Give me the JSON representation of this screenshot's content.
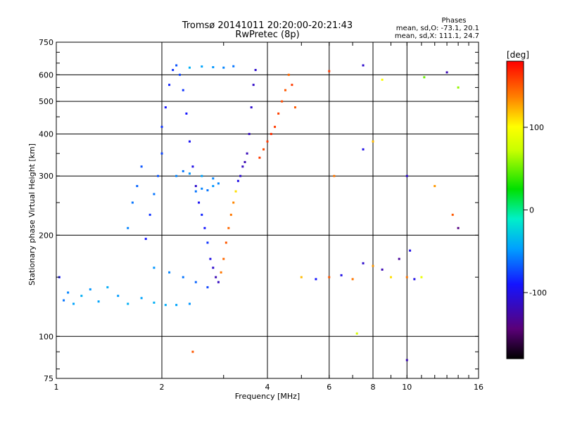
{
  "chart_data": {
    "type": "scatter",
    "title": "Tromsø 20141011 20:20:00-20:21:43",
    "subtitle": "RwPretec (8p)",
    "stats": {
      "heading": "Phases",
      "line1": "mean, sd,O: -73.1, 20.1",
      "line2": "mean, sd,X: 111.1, 24.7"
    },
    "xlabel": "Frequency [MHz]",
    "ylabel": "Stationary phase Virtual Height [km]",
    "x_scale": "log",
    "y_scale": "log",
    "xlim": [
      1,
      16
    ],
    "ylim": [
      75,
      750
    ],
    "x_ticks": [
      1,
      2,
      4,
      6,
      8,
      10,
      16
    ],
    "x_tick_labels": [
      "1",
      "2",
      "4",
      "6",
      "8",
      "10",
      "16"
    ],
    "y_ticks": [
      75,
      100,
      200,
      300,
      400,
      500,
      600,
      750
    ],
    "y_tick_labels": [
      "75",
      "100",
      "200",
      "300",
      "400",
      "500",
      "600",
      "750"
    ],
    "grid": true,
    "colorbar": {
      "label": "[deg]",
      "range": [
        -180,
        180
      ],
      "ticks": [
        -100,
        0,
        100
      ],
      "tick_labels": [
        "-100",
        "0",
        "100"
      ]
    },
    "series": [
      {
        "points": [
          [
            1.02,
            150,
            -90
          ],
          [
            1.05,
            128,
            -60
          ],
          [
            1.08,
            135,
            -55
          ],
          [
            1.12,
            125,
            -45
          ],
          [
            1.18,
            132,
            -40
          ],
          [
            1.25,
            138,
            -50
          ],
          [
            1.32,
            127,
            -45
          ],
          [
            1.4,
            140,
            -42
          ],
          [
            1.5,
            132,
            -48
          ],
          [
            1.6,
            125,
            -40
          ],
          [
            1.75,
            130,
            -45
          ],
          [
            1.9,
            126,
            -40
          ],
          [
            2.05,
            124,
            -42
          ],
          [
            2.2,
            124,
            -45
          ],
          [
            2.4,
            125,
            -50
          ],
          [
            1.6,
            210,
            -55
          ],
          [
            1.65,
            250,
            -60
          ],
          [
            1.7,
            280,
            -65
          ],
          [
            1.75,
            320,
            -70
          ],
          [
            1.8,
            195,
            -90
          ],
          [
            1.85,
            230,
            -80
          ],
          [
            1.9,
            265,
            -60
          ],
          [
            1.95,
            300,
            -70
          ],
          [
            2.0,
            350,
            -75
          ],
          [
            2.0,
            420,
            -80
          ],
          [
            2.05,
            480,
            -90
          ],
          [
            2.1,
            560,
            -85
          ],
          [
            2.15,
            620,
            -80
          ],
          [
            2.2,
            640,
            -70
          ],
          [
            2.25,
            600,
            -75
          ],
          [
            2.3,
            540,
            -80
          ],
          [
            2.35,
            460,
            -90
          ],
          [
            2.4,
            380,
            -95
          ],
          [
            2.45,
            320,
            -100
          ],
          [
            2.5,
            280,
            -110
          ],
          [
            2.55,
            250,
            -95
          ],
          [
            2.6,
            230,
            -85
          ],
          [
            2.65,
            210,
            -90
          ],
          [
            2.7,
            190,
            -80
          ],
          [
            2.75,
            170,
            -100
          ],
          [
            2.8,
            160,
            -110
          ],
          [
            2.85,
            150,
            -120
          ],
          [
            2.9,
            145,
            -115
          ],
          [
            2.95,
            155,
            140
          ],
          [
            3.0,
            170,
            145
          ],
          [
            3.05,
            190,
            150
          ],
          [
            3.1,
            210,
            145
          ],
          [
            3.15,
            230,
            140
          ],
          [
            3.2,
            250,
            135
          ],
          [
            3.25,
            270,
            110
          ],
          [
            3.3,
            290,
            -100
          ],
          [
            3.35,
            300,
            -110
          ],
          [
            3.4,
            320,
            -115
          ],
          [
            3.45,
            330,
            -120
          ],
          [
            3.5,
            350,
            -118
          ],
          [
            3.55,
            400,
            -115
          ],
          [
            3.6,
            480,
            -110
          ],
          [
            3.65,
            560,
            -112
          ],
          [
            3.7,
            620,
            -110
          ],
          [
            3.8,
            340,
            160
          ],
          [
            3.9,
            360,
            155
          ],
          [
            4.0,
            380,
            160
          ],
          [
            4.1,
            400,
            165
          ],
          [
            4.2,
            420,
            160
          ],
          [
            4.3,
            460,
            158
          ],
          [
            4.4,
            500,
            155
          ],
          [
            4.5,
            540,
            150
          ],
          [
            4.6,
            600,
            145
          ],
          [
            4.7,
            560,
            160
          ],
          [
            4.8,
            480,
            150
          ],
          [
            2.5,
            270,
            -60
          ],
          [
            2.6,
            275,
            -55
          ],
          [
            2.7,
            272,
            -60
          ],
          [
            2.8,
            280,
            -50
          ],
          [
            2.9,
            285,
            -55
          ],
          [
            1.9,
            160,
            -50
          ],
          [
            2.1,
            155,
            -55
          ],
          [
            2.3,
            150,
            -60
          ],
          [
            2.5,
            145,
            -65
          ],
          [
            2.7,
            140,
            -75
          ],
          [
            2.2,
            300,
            -55
          ],
          [
            2.3,
            310,
            -60
          ],
          [
            2.4,
            305,
            -50
          ],
          [
            2.6,
            300,
            -45
          ],
          [
            2.8,
            295,
            -55
          ],
          [
            2.4,
            630,
            -40
          ],
          [
            2.6,
            635,
            -45
          ],
          [
            2.8,
            632,
            -50
          ],
          [
            3.0,
            630,
            -55
          ],
          [
            3.2,
            636,
            -60
          ],
          [
            5.0,
            150,
            120
          ],
          [
            5.5,
            148,
            -90
          ],
          [
            6.0,
            150,
            150
          ],
          [
            6.5,
            152,
            -100
          ],
          [
            7.0,
            148,
            140
          ],
          [
            7.5,
            165,
            -110
          ],
          [
            8.0,
            162,
            130
          ],
          [
            8.5,
            158,
            -120
          ],
          [
            9.0,
            150,
            110
          ],
          [
            9.5,
            170,
            -130
          ],
          [
            10.0,
            150,
            140
          ],
          [
            10.5,
            148,
            -100
          ],
          [
            11.0,
            150,
            90
          ],
          [
            6.2,
            300,
            140
          ],
          [
            7.5,
            360,
            -100
          ],
          [
            8.0,
            380,
            120
          ],
          [
            10.0,
            300,
            -110
          ],
          [
            12.0,
            280,
            130
          ],
          [
            13.5,
            230,
            150
          ],
          [
            14.0,
            210,
            -140
          ],
          [
            7.5,
            640,
            -110
          ],
          [
            8.5,
            580,
            100
          ],
          [
            10.2,
            180,
            -100
          ],
          [
            10.0,
            85,
            -120
          ],
          [
            7.2,
            102,
            80
          ],
          [
            2.45,
            90,
            150
          ],
          [
            6.0,
            615,
            160
          ],
          [
            13.0,
            610,
            -120
          ],
          [
            14.0,
            550,
            60
          ],
          [
            11.2,
            590,
            50
          ]
        ]
      }
    ]
  }
}
